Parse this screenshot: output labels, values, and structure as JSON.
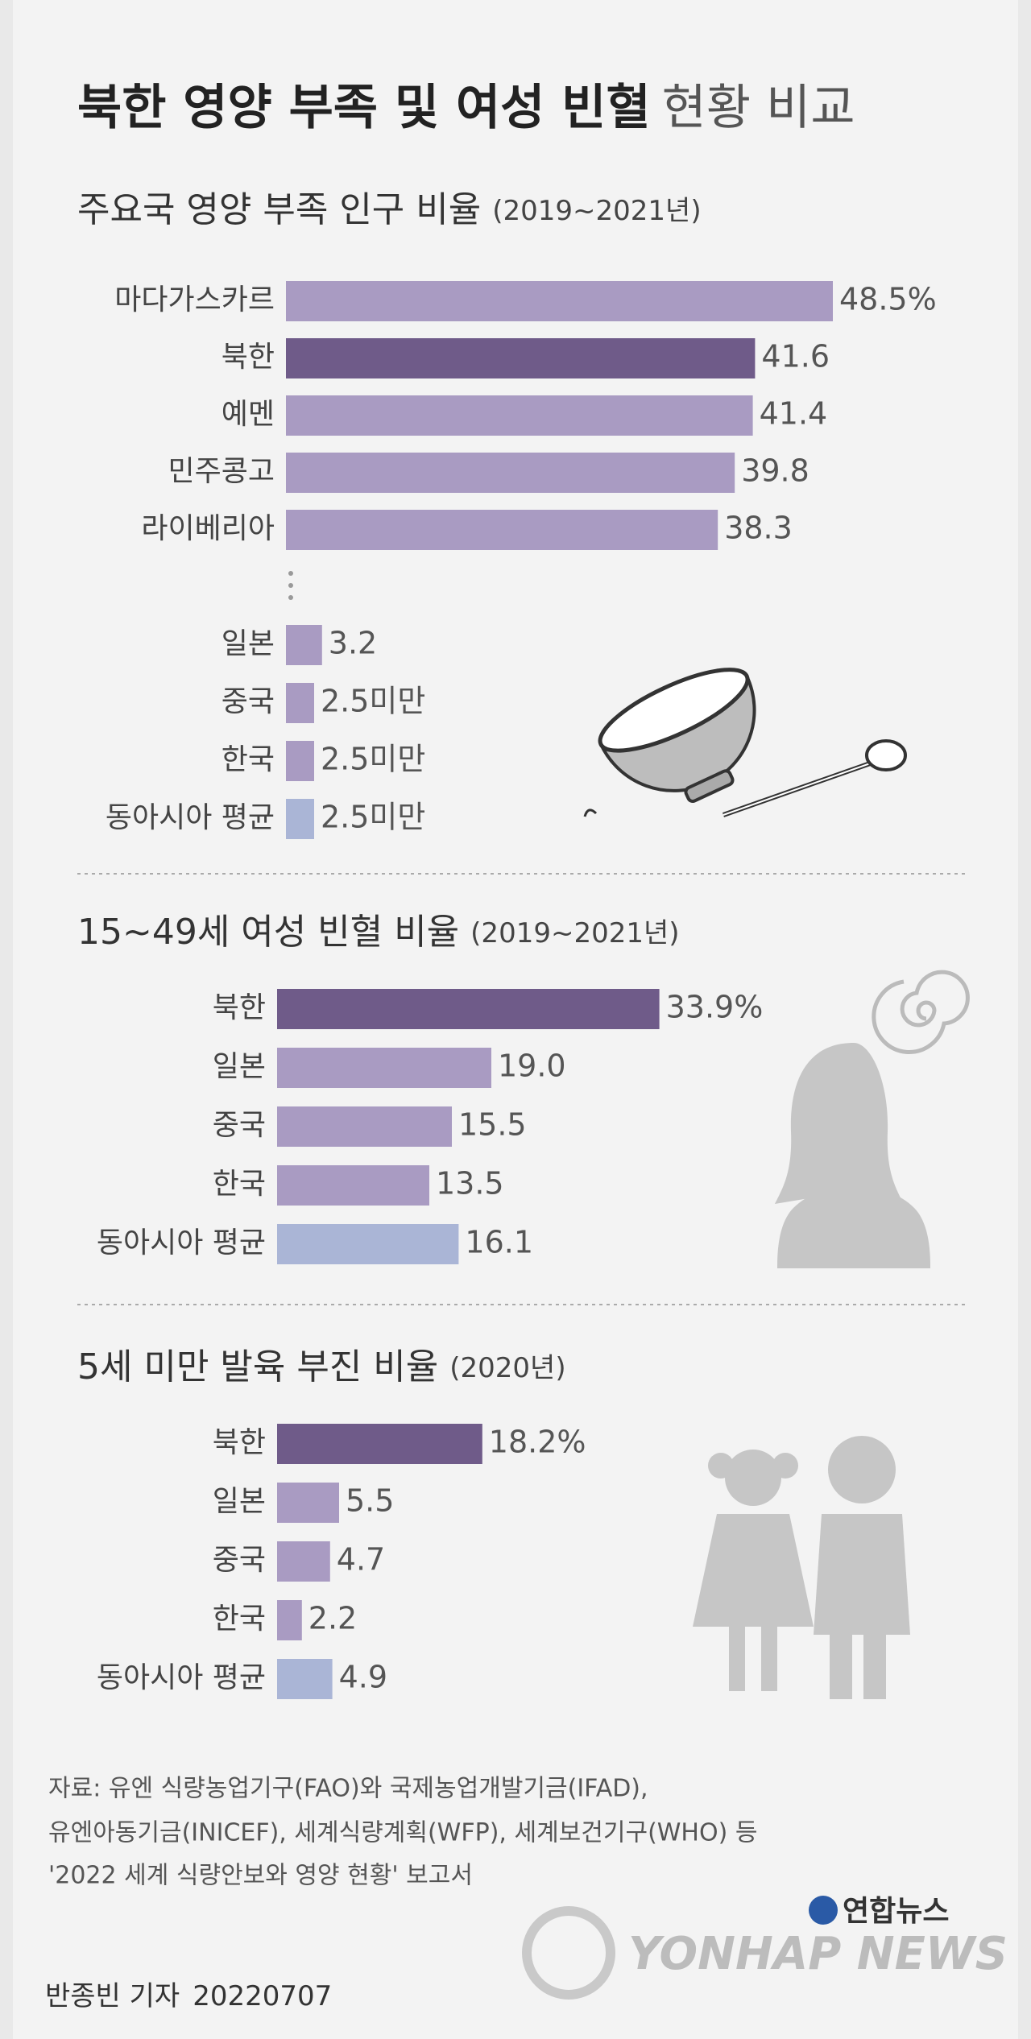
{
  "header": {
    "title_bold": "북한 영양 부족 및 여성 빈혈",
    "title_light": "현황 비교"
  },
  "chart_data": [
    {
      "type": "bar",
      "orientation": "horizontal",
      "title": "주요국 영양 부족 인구 비율",
      "subtitle": "(2019~2021년)",
      "categories": [
        "마다가스카르",
        "북한",
        "예멘",
        "민주콩고",
        "라이베리아",
        "일본",
        "중국",
        "한국",
        "동아시아 평균"
      ],
      "values": [
        48.5,
        41.6,
        41.4,
        39.8,
        38.3,
        3.2,
        2.5,
        2.5,
        2.5
      ],
      "value_labels": [
        "48.5%",
        "41.6",
        "41.4",
        "39.8",
        "38.3",
        "3.2",
        "2.5미만",
        "2.5미만",
        "2.5미만"
      ],
      "colors": [
        "#a99bc2",
        "#6f5b89",
        "#a99bc2",
        "#a99bc2",
        "#a99bc2",
        "#a99bc2",
        "#a99bc2",
        "#a99bc2",
        "#aab5d6"
      ]
    },
    {
      "type": "bar",
      "orientation": "horizontal",
      "title": "15~49세 여성 빈혈 비율",
      "subtitle": "(2019~2021년)",
      "categories": [
        "북한",
        "일본",
        "중국",
        "한국",
        "동아시아 평균"
      ],
      "values": [
        33.9,
        19.0,
        15.5,
        13.5,
        16.1
      ],
      "value_labels": [
        "33.9%",
        "19.0",
        "15.5",
        "13.5",
        "16.1"
      ],
      "colors": [
        "#6f5b89",
        "#a99bc2",
        "#a99bc2",
        "#a99bc2",
        "#aab5d6"
      ]
    },
    {
      "type": "bar",
      "orientation": "horizontal",
      "title": "5세 미만 발육 부진 비율",
      "subtitle": "(2020년)",
      "categories": [
        "북한",
        "일본",
        "중국",
        "한국",
        "동아시아 평균"
      ],
      "values": [
        18.2,
        5.5,
        4.7,
        2.2,
        4.9
      ],
      "value_labels": [
        "18.2%",
        "5.5",
        "4.7",
        "2.2",
        "4.9"
      ],
      "colors": [
        "#6f5b89",
        "#a99bc2",
        "#a99bc2",
        "#a99bc2",
        "#aab5d6"
      ]
    }
  ],
  "footer": {
    "source": [
      "자료: 유엔 식량농업기구(FAO)와 국제농업개발기금(IFAD),",
      "유엔아동기금(INICEF), 세계식량계획(WFP), 세계보건기구(WHO) 등",
      "'2022 세계 식량안보와 영양 현황' 보고서"
    ],
    "byline": "반종빈 기자",
    "date": "20220707",
    "logo_korean": "연합뉴스",
    "logo_english": "YONHAP NEWS"
  }
}
